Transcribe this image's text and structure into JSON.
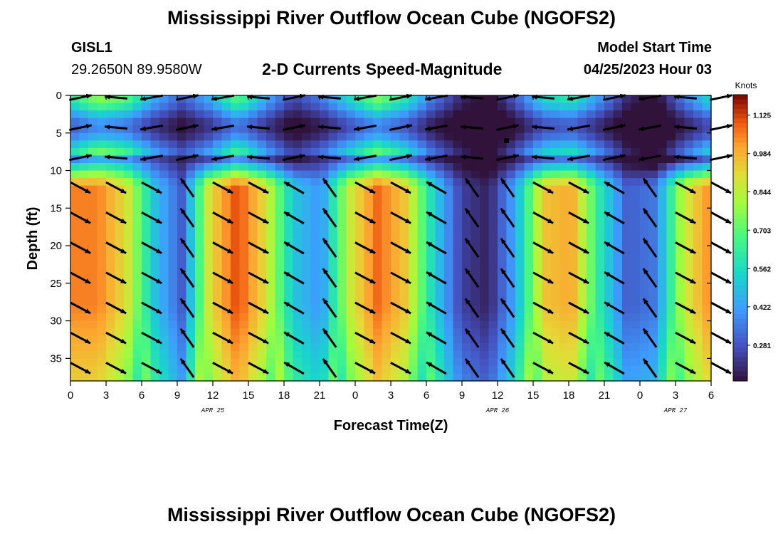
{
  "title": "Mississippi River Outflow Ocean Cube (NGOFS2)",
  "title_repeat": "Mississippi River Outflow Ocean Cube (NGOFS2)",
  "station": {
    "id": "GISL1",
    "coords": "29.2650N  89.9580W"
  },
  "subtitle": "2-D Currents Speed-Magnitude",
  "model": {
    "label": "Model Start Time",
    "time": "04/25/2023 Hour 03"
  },
  "chart_data": {
    "type": "heatmap",
    "title": "2-D Currents Speed-Magnitude",
    "xlabel": "Forecast Time(Z)",
    "ylabel": "Depth (ft)",
    "x_range_hours": [
      0,
      54
    ],
    "y_range_ft": [
      0,
      38
    ],
    "x_tick_labels": [
      "0",
      "3",
      "6",
      "9",
      "12",
      "15",
      "18",
      "21",
      "0",
      "3",
      "6",
      "9",
      "12",
      "15",
      "18",
      "21",
      "0",
      "3",
      "6"
    ],
    "y_tick_labels": [
      "0",
      "5",
      "10",
      "15",
      "20",
      "25",
      "30",
      "35"
    ],
    "y_tick_values": [
      0,
      5,
      10,
      15,
      20,
      25,
      30,
      35
    ],
    "date_labels": [
      {
        "label": "APR 25",
        "hour": 12
      },
      {
        "label": "APR 26",
        "hour": 36
      },
      {
        "label": "APR 27",
        "hour": 51
      }
    ],
    "colorbar": {
      "unit": "Knots",
      "ticks": [
        "1.125",
        "0.984",
        "0.844",
        "0.703",
        "0.562",
        "0.422",
        "0.281"
      ],
      "tick_values": [
        1.125,
        0.984,
        0.844,
        0.703,
        0.562,
        0.422,
        0.281
      ],
      "range": [
        0.15,
        1.2
      ]
    },
    "column_speeds_deep_knots": [
      1.05,
      1.05,
      0.9,
      0.5,
      0.3,
      0.9,
      1.12,
      0.9,
      0.5,
      0.4,
      0.85,
      1.08,
      0.95,
      0.55,
      0.25,
      0.18,
      0.45,
      0.95,
      1.0,
      0.6,
      0.3,
      0.35,
      0.85,
      1.05
    ],
    "column_speeds_surface_knots": [
      0.6,
      0.78,
      0.7,
      0.45,
      0.3,
      0.45,
      0.7,
      0.45,
      0.25,
      0.35,
      0.55,
      0.75,
      0.6,
      0.35,
      0.2,
      0.12,
      0.3,
      0.55,
      0.6,
      0.4,
      0.2,
      0.12,
      0.35,
      0.55
    ],
    "arrow_columns_hours": [
      0,
      3,
      6,
      9,
      12,
      15,
      18,
      21,
      24,
      27,
      30,
      33,
      36,
      39,
      42,
      45,
      48,
      51,
      54
    ],
    "arrow_depths_ft": [
      0,
      4,
      8,
      12,
      16,
      20,
      24,
      28,
      32,
      36
    ]
  }
}
